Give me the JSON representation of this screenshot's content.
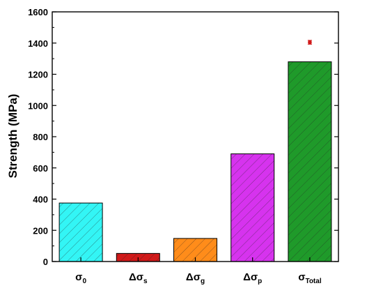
{
  "chart_data": {
    "type": "bar",
    "title": "",
    "xlabel": "",
    "ylabel": "Strength (MPa)",
    "ylim": [
      0,
      1600
    ],
    "yticks": [
      0,
      200,
      400,
      600,
      800,
      1000,
      1200,
      1400,
      1600
    ],
    "categories": [
      {
        "base": "σ",
        "prefix": "",
        "sub": "0"
      },
      {
        "base": "σ",
        "prefix": "Δ",
        "sub": "s"
      },
      {
        "base": "σ",
        "prefix": "Δ",
        "sub": "g"
      },
      {
        "base": "σ",
        "prefix": "Δ",
        "sub": "p"
      },
      {
        "base": "σ",
        "prefix": "",
        "sub": "Total"
      }
    ],
    "values": [
      375,
      52,
      148,
      690,
      1280
    ],
    "bar_colors": [
      "#33f5f5",
      "#d11a1a",
      "#ff8c1a",
      "#d633ee",
      "#1f9a2a"
    ],
    "hatch": "diagonal",
    "grid": false,
    "experimental_point": {
      "category_index": 4,
      "value": 1405,
      "error": 12,
      "color": "#d11a1a"
    }
  }
}
